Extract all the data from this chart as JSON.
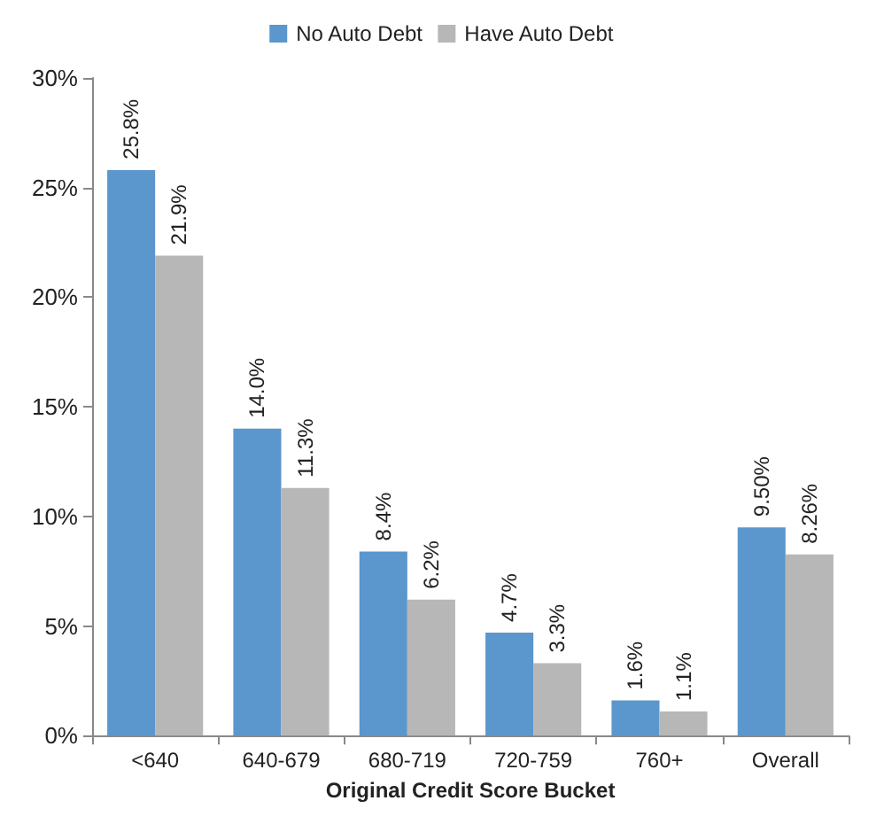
{
  "chart_data": {
    "type": "bar",
    "xlabel": "Original Credit Score Bucket",
    "categories": [
      "<640",
      "640-679",
      "680-719",
      "720-759",
      "760+",
      "Overall"
    ],
    "series": [
      {
        "name": "No Auto Debt",
        "color": "#5b96cc",
        "values": [
          25.8,
          14.0,
          8.4,
          4.7,
          1.6,
          9.5
        ],
        "value_labels": [
          "25.8%",
          "14.0%",
          "8.4%",
          "4.7%",
          "1.6%",
          "9.50%"
        ]
      },
      {
        "name": "Have Auto Debt",
        "color": "#b7b7b7",
        "values": [
          21.9,
          11.3,
          6.2,
          3.3,
          1.1,
          8.26
        ],
        "value_labels": [
          "21.9%",
          "11.3%",
          "6.2%",
          "3.3%",
          "1.1%",
          "8.26%"
        ]
      }
    ],
    "ylim": [
      0,
      30
    ],
    "yticks": [
      {
        "value": 0,
        "label": "0%"
      },
      {
        "value": 5,
        "label": "5%"
      },
      {
        "value": 10,
        "label": "10%"
      },
      {
        "value": 15,
        "label": "15%"
      },
      {
        "value": 20,
        "label": "20%"
      },
      {
        "value": 25,
        "label": "25%"
      },
      {
        "value": 30,
        "label": "30%"
      }
    ],
    "grid": false,
    "legend": "top"
  }
}
